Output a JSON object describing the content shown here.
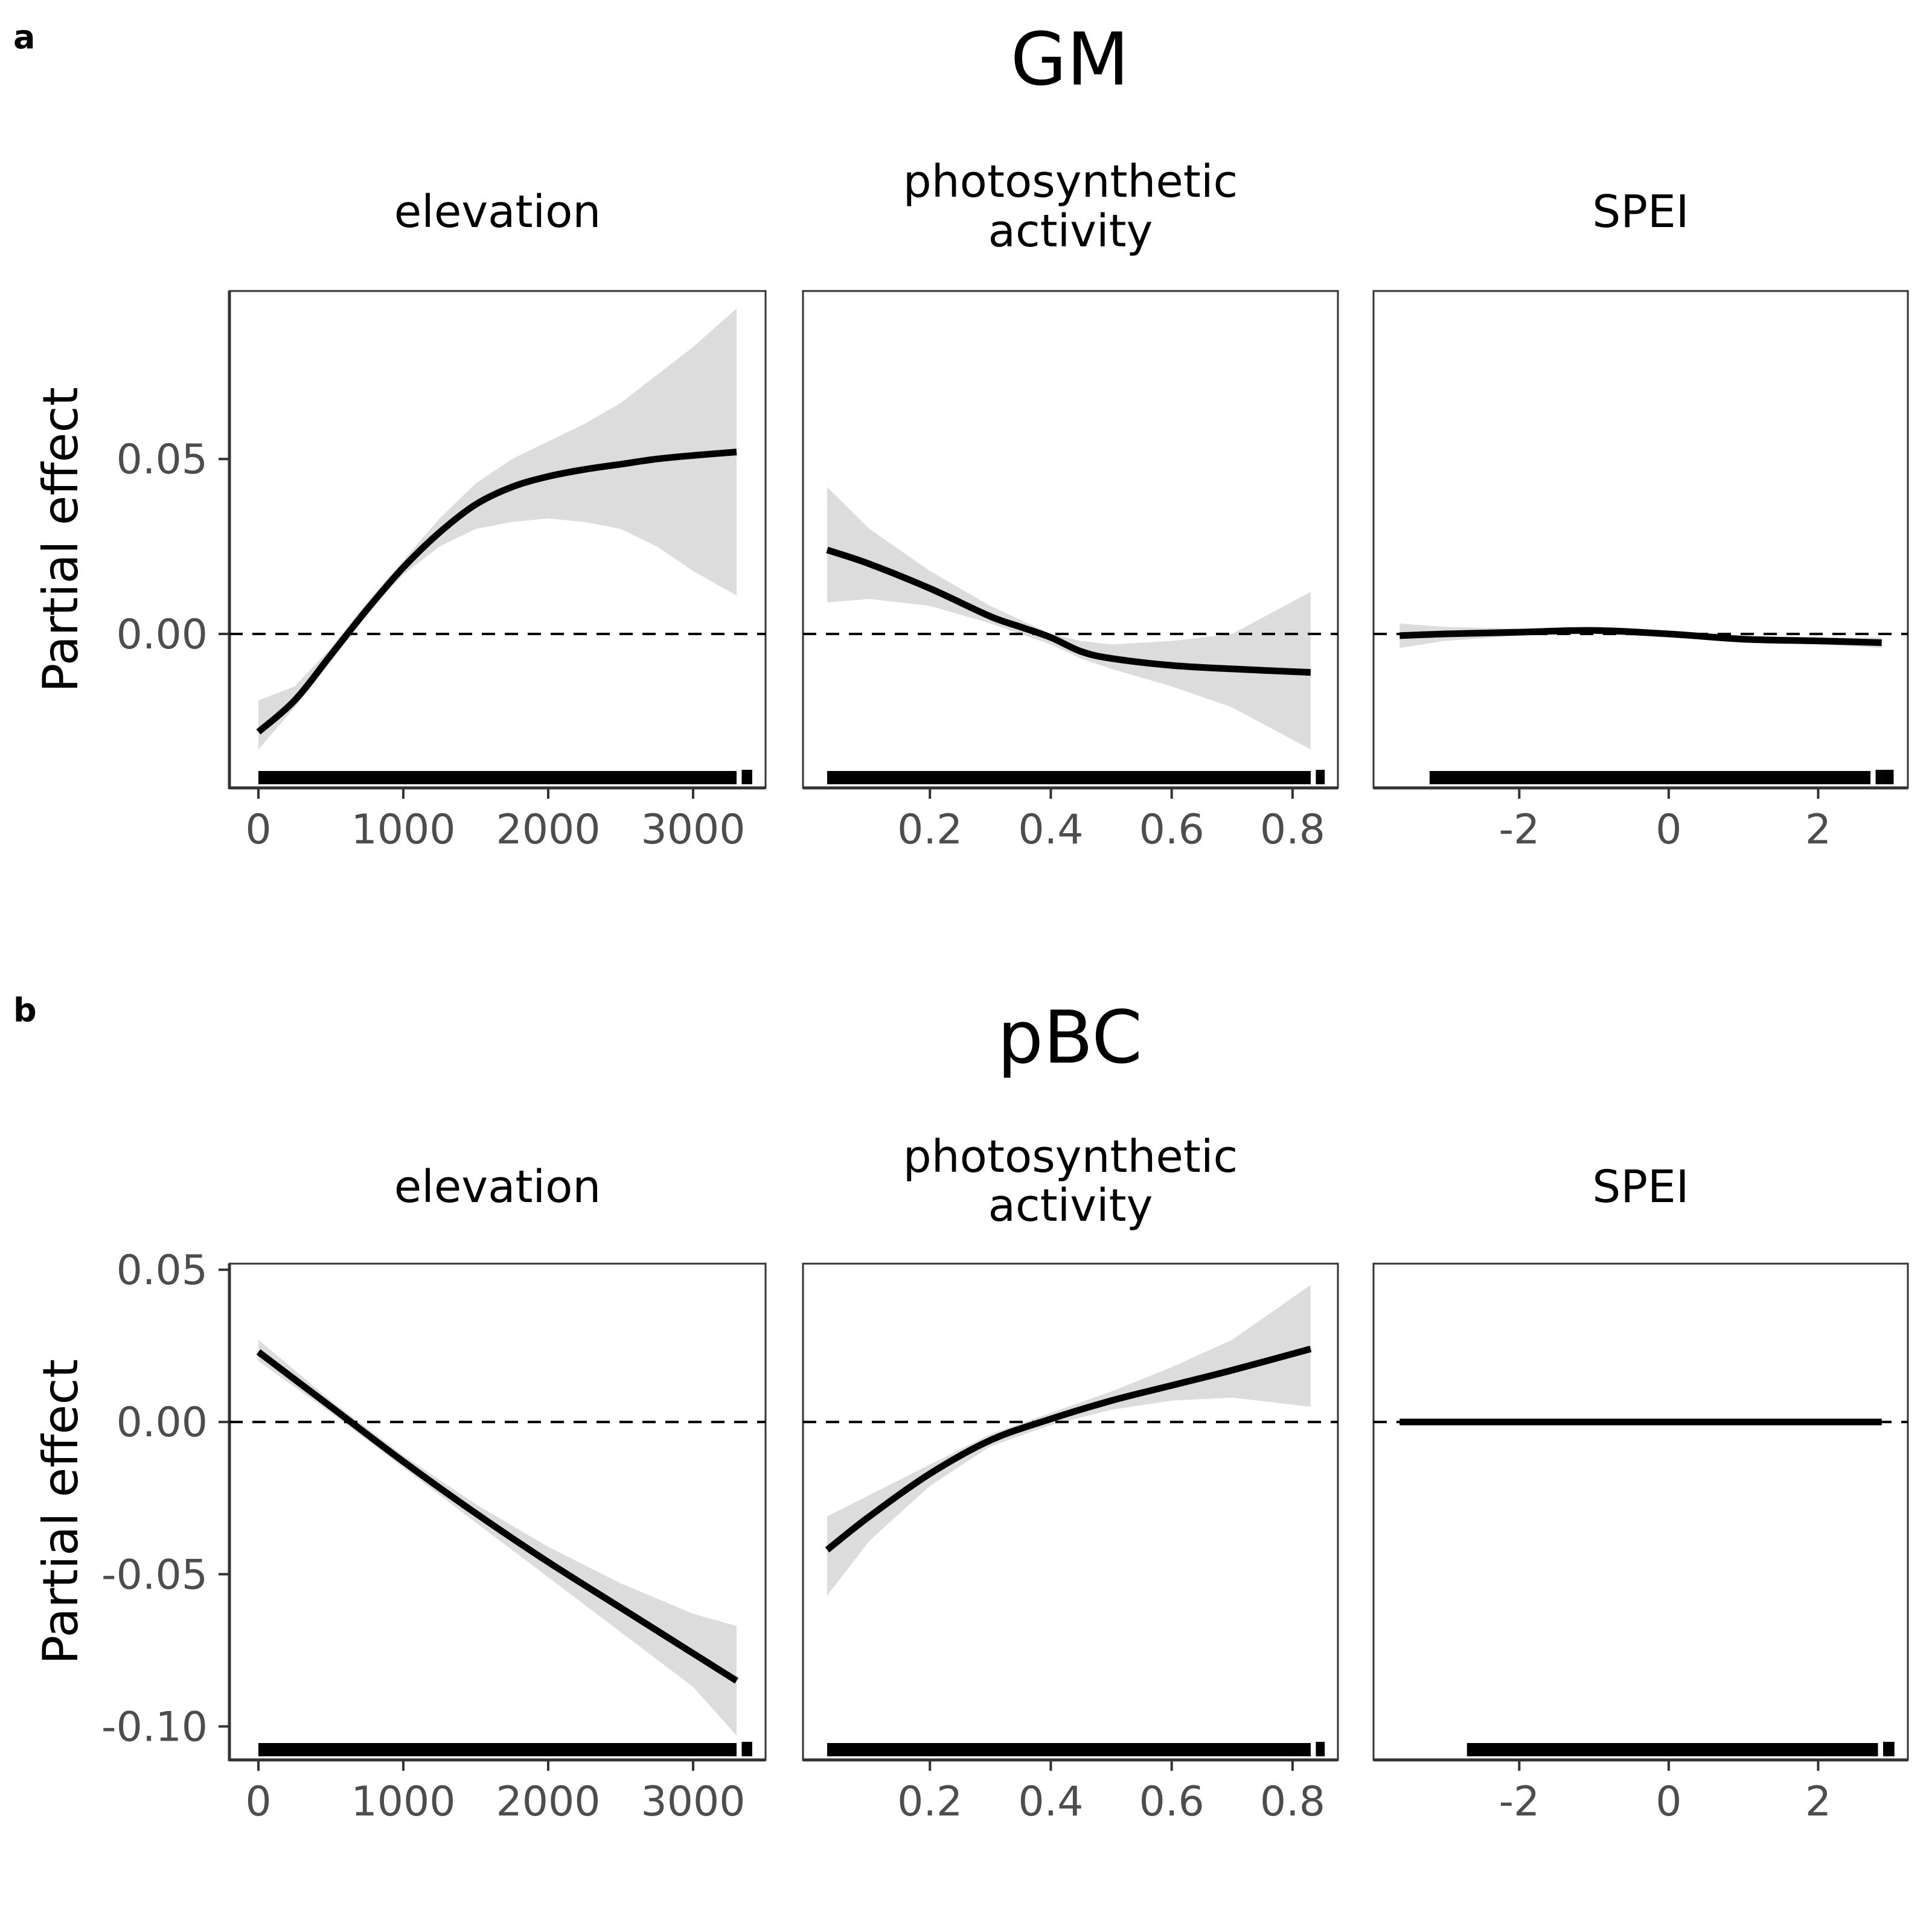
{
  "figure": {
    "rows": [
      {
        "letter": "a",
        "title": "GM",
        "ylabel": "Partial effect",
        "ylim": [
          -0.044,
          0.098
        ],
        "yticks": [
          0.0,
          0.05
        ],
        "ytick_labels": [
          "0.00",
          "0.05"
        ]
      },
      {
        "letter": "b",
        "title": "pBC",
        "ylabel": "Partial effect",
        "ylim": [
          -0.111,
          0.052
        ],
        "yticks": [
          -0.1,
          -0.05,
          0.0,
          0.05
        ],
        "ytick_labels": [
          "-0.10",
          "-0.05",
          "0.00",
          "0.05"
        ]
      }
    ],
    "columns": [
      {
        "label_lines": [
          "elevation"
        ],
        "xlim": [
          -200,
          3500
        ],
        "xticks": [
          0,
          1000,
          2000,
          3000
        ],
        "xtick_labels": [
          "0",
          "1000",
          "2000",
          "3000"
        ]
      },
      {
        "label_lines": [
          "photosynthetic",
          "activity"
        ],
        "xlim": [
          -0.01,
          0.875
        ],
        "xticks": [
          0.2,
          0.4,
          0.6,
          0.8
        ],
        "xtick_labels": [
          "0.2",
          "0.4",
          "0.6",
          "0.8"
        ]
      },
      {
        "label_lines": [
          "SPEI"
        ],
        "xlim": [
          -3.95,
          3.2
        ],
        "xticks": [
          -2,
          0,
          2
        ],
        "xtick_labels": [
          "-2",
          "0",
          "2"
        ]
      }
    ]
  },
  "chart_data": [
    {
      "type": "line",
      "title": "GM",
      "subtitle": "elevation",
      "ylabel": "Partial effect",
      "xlim": [
        -200,
        3500
      ],
      "ylim": [
        -0.044,
        0.098
      ],
      "reference_line": 0,
      "x": [
        0,
        250,
        500,
        750,
        1000,
        1250,
        1500,
        1750,
        2000,
        2250,
        2500,
        2750,
        3000,
        3300
      ],
      "y": [
        -0.028,
        -0.019,
        -0.006,
        0.007,
        0.019,
        0.029,
        0.037,
        0.042,
        0.045,
        0.047,
        0.0485,
        0.05,
        0.051,
        0.052
      ],
      "lower": [
        -0.033,
        -0.021,
        -0.008,
        0.006,
        0.017,
        0.025,
        0.03,
        0.032,
        0.033,
        0.032,
        0.03,
        0.025,
        0.018,
        0.011
      ],
      "upper": [
        -0.019,
        -0.015,
        -0.004,
        0.009,
        0.021,
        0.033,
        0.043,
        0.05,
        0.055,
        0.06,
        0.066,
        0.074,
        0.082,
        0.093
      ],
      "rug_range": [
        0,
        3300
      ]
    },
    {
      "type": "line",
      "title": "GM",
      "subtitle": "photosynthetic activity",
      "ylabel": "Partial effect",
      "xlim": [
        -0.01,
        0.875
      ],
      "ylim": [
        -0.044,
        0.098
      ],
      "reference_line": 0,
      "x": [
        0.03,
        0.1,
        0.2,
        0.3,
        0.35,
        0.4,
        0.45,
        0.5,
        0.6,
        0.7,
        0.83
      ],
      "y": [
        0.024,
        0.02,
        0.013,
        0.005,
        0.002,
        -0.001,
        -0.005,
        -0.007,
        -0.009,
        -0.01,
        -0.011
      ],
      "lower": [
        0.009,
        0.01,
        0.008,
        0.003,
        0.0,
        -0.003,
        -0.007,
        -0.01,
        -0.015,
        -0.021,
        -0.033
      ],
      "upper": [
        0.042,
        0.03,
        0.018,
        0.008,
        0.004,
        0.0,
        -0.002,
        -0.003,
        -0.002,
        0.0,
        0.012
      ],
      "rug_range": [
        0.03,
        0.83
      ]
    },
    {
      "type": "line",
      "title": "GM",
      "subtitle": "SPEI",
      "ylabel": "Partial effect",
      "xlim": [
        -3.95,
        3.2
      ],
      "ylim": [
        -0.044,
        0.098
      ],
      "reference_line": 0,
      "x": [
        -3.6,
        -3.0,
        -2.0,
        -1.0,
        0.0,
        1.0,
        2.0,
        2.85
      ],
      "y": [
        -0.0005,
        0.0,
        0.0005,
        0.001,
        0.0,
        -0.0015,
        -0.002,
        -0.0025
      ],
      "lower": [
        -0.004,
        -0.002,
        -0.0005,
        0.0,
        -0.001,
        -0.0025,
        -0.003,
        -0.004
      ],
      "upper": [
        0.003,
        0.002,
        0.0015,
        0.002,
        0.001,
        -0.0005,
        -0.001,
        -0.001
      ],
      "rug_range": [
        -3.2,
        2.7
      ]
    },
    {
      "type": "line",
      "title": "pBC",
      "subtitle": "elevation",
      "ylabel": "Partial effect",
      "xlim": [
        -200,
        3500
      ],
      "ylim": [
        -0.111,
        0.052
      ],
      "reference_line": 0,
      "x": [
        0,
        500,
        1000,
        1500,
        2000,
        2500,
        3000,
        3300
      ],
      "y": [
        0.023,
        0.005,
        -0.013,
        -0.03,
        -0.046,
        -0.061,
        -0.076,
        -0.085
      ],
      "lower": [
        0.02,
        0.003,
        -0.015,
        -0.033,
        -0.051,
        -0.069,
        -0.087,
        -0.103
      ],
      "upper": [
        0.027,
        0.007,
        -0.011,
        -0.027,
        -0.041,
        -0.053,
        -0.063,
        -0.067
      ],
      "rug_range": [
        0,
        3300
      ]
    },
    {
      "type": "line",
      "title": "pBC",
      "subtitle": "photosynthetic activity",
      "ylabel": "Partial effect",
      "xlim": [
        -0.01,
        0.875
      ],
      "ylim": [
        -0.111,
        0.052
      ],
      "reference_line": 0,
      "x": [
        0.03,
        0.1,
        0.2,
        0.3,
        0.4,
        0.5,
        0.6,
        0.7,
        0.83
      ],
      "y": [
        -0.042,
        -0.031,
        -0.017,
        -0.006,
        0.001,
        0.007,
        0.012,
        0.017,
        0.024
      ],
      "lower": [
        -0.057,
        -0.039,
        -0.021,
        -0.008,
        -0.001,
        0.004,
        0.007,
        0.008,
        0.005
      ],
      "upper": [
        -0.031,
        -0.024,
        -0.014,
        -0.004,
        0.003,
        0.01,
        0.018,
        0.027,
        0.045
      ],
      "rug_range": [
        0.03,
        0.83
      ]
    },
    {
      "type": "line",
      "title": "pBC",
      "subtitle": "SPEI",
      "ylabel": "Partial effect",
      "xlim": [
        -3.95,
        3.2
      ],
      "ylim": [
        -0.111,
        0.052
      ],
      "reference_line": 0,
      "x": [
        -3.6,
        2.85
      ],
      "y": [
        0.0,
        0.0
      ],
      "lower": [
        -0.0005,
        -0.0005
      ],
      "upper": [
        0.0005,
        0.0005
      ],
      "rug_range": [
        -2.7,
        2.8
      ]
    }
  ]
}
